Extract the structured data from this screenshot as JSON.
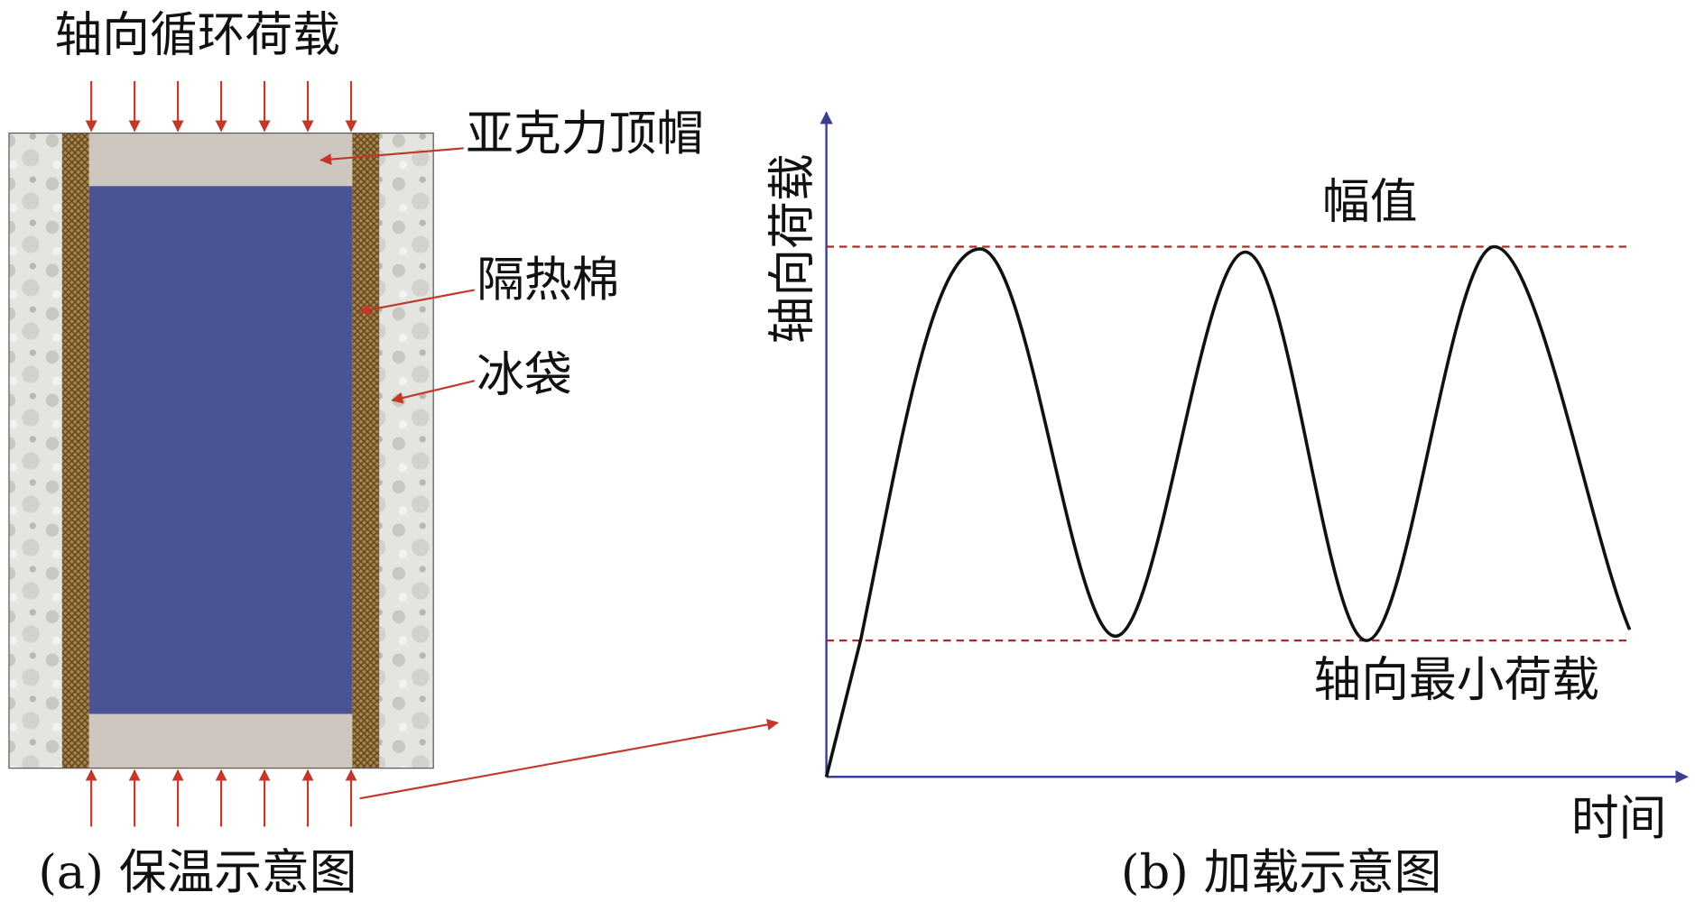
{
  "left": {
    "load_label": "轴向循环荷载",
    "cap_label": "亚克力顶帽",
    "insulation_label": "隔热棉",
    "ice_label": "冰袋",
    "caption": "(a) 保温示意图"
  },
  "right": {
    "y_label": "轴向荷载",
    "x_label": "时间",
    "amplitude_label": "幅值",
    "min_label": "轴向最小荷载",
    "caption": "(b) 加载示意图"
  }
}
